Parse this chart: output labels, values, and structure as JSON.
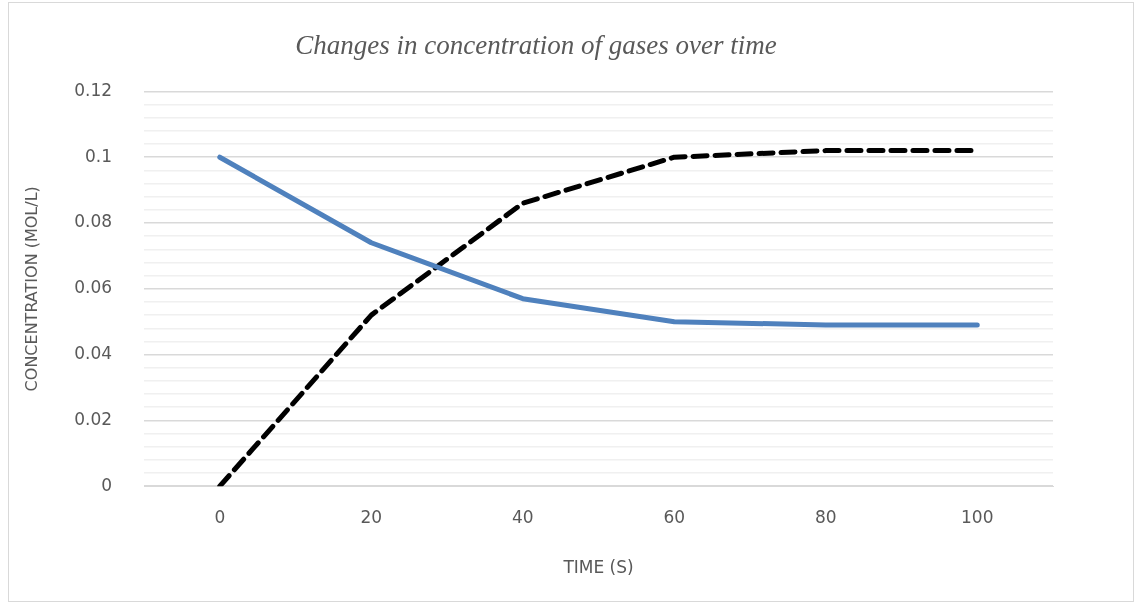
{
  "chart_data": {
    "type": "line",
    "title": "Changes in concentration of gases over time",
    "xlabel": "TIME (S)",
    "ylabel": "CONCENTRATION (MOL/L)",
    "categories": [
      "0",
      "20",
      "40",
      "60",
      "80",
      "100"
    ],
    "series": [
      {
        "color": "#4f81bd",
        "line_style": "solid",
        "values": [
          0.1,
          0.074,
          0.057,
          0.05,
          0.049,
          0.049
        ]
      },
      {
        "color": "#000000",
        "line_style": "dashed",
        "values": [
          0,
          0.052,
          0.086,
          0.1,
          0.102,
          0.102
        ]
      }
    ],
    "ylim": [
      0,
      0.12
    ],
    "yticks": [
      0,
      {
        "value": 0.004,
        "label": null
      },
      {
        "value": 0.008,
        "label": null
      },
      {
        "value": 0.012,
        "label": null
      },
      {
        "value": 0.016,
        "label": null
      },
      0.02,
      {
        "value": 0.024,
        "label": null
      },
      {
        "value": 0.028,
        "label": null
      },
      {
        "value": 0.032,
        "label": null
      },
      {
        "value": 0.036,
        "label": null
      },
      0.04,
      {
        "value": 0.044,
        "label": null
      },
      {
        "value": 0.048,
        "label": null
      },
      {
        "value": 0.052,
        "label": null
      },
      {
        "value": 0.056,
        "label": null
      },
      0.06,
      {
        "value": 0.064,
        "label": null
      },
      {
        "value": 0.068,
        "label": null
      },
      {
        "value": 0.072,
        "label": null
      },
      {
        "value": 0.076,
        "label": null
      },
      0.08,
      {
        "value": 0.084,
        "label": null
      },
      {
        "value": 0.088,
        "label": null
      },
      {
        "value": 0.092,
        "label": null
      },
      {
        "value": 0.096,
        "label": null
      },
      0.1,
      {
        "value": 0.104,
        "label": null
      },
      {
        "value": 0.108,
        "label": null
      },
      {
        "value": 0.112,
        "label": null
      },
      {
        "value": 0.116,
        "label": null
      },
      0.12
    ],
    "grid": "y",
    "legend": false,
    "marker": "none"
  }
}
